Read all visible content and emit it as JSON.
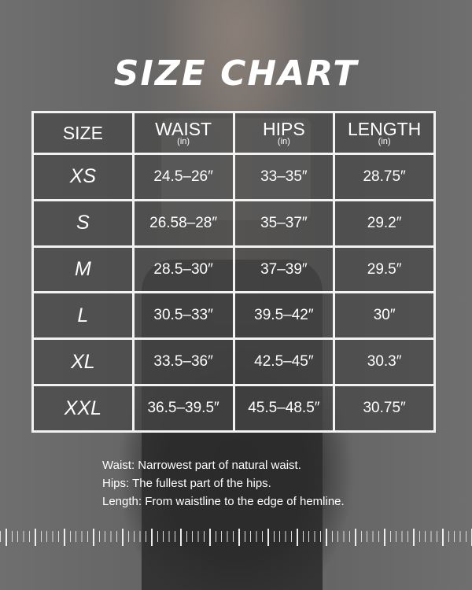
{
  "title": "SIZE CHART",
  "headers": [
    {
      "label": "SIZE",
      "unit": ""
    },
    {
      "label": "WAIST",
      "unit": "(in)"
    },
    {
      "label": "HIPS",
      "unit": "(in)"
    },
    {
      "label": "LENGTH",
      "unit": "(in)"
    }
  ],
  "rows": [
    [
      "XS",
      "24.5–26″",
      "33–35″",
      "28.75″"
    ],
    [
      "S",
      "26.58–28″",
      "35–37″",
      "29.2″"
    ],
    [
      "M",
      "28.5–30″",
      "37–39″",
      "29.5″"
    ],
    [
      "L",
      "30.5–33″",
      "39.5–42″",
      "30″"
    ],
    [
      "XL",
      "33.5–36″",
      "42.5–45″",
      "30.3″"
    ],
    [
      "XXL",
      "36.5–39.5″",
      "45.5–48.5″",
      "30.75″"
    ]
  ],
  "notes": [
    "Waist: Narrowest part of natural waist.",
    "Hips: The fullest part of the hips.",
    "Length: From waistline to the edge of hemline."
  ]
}
